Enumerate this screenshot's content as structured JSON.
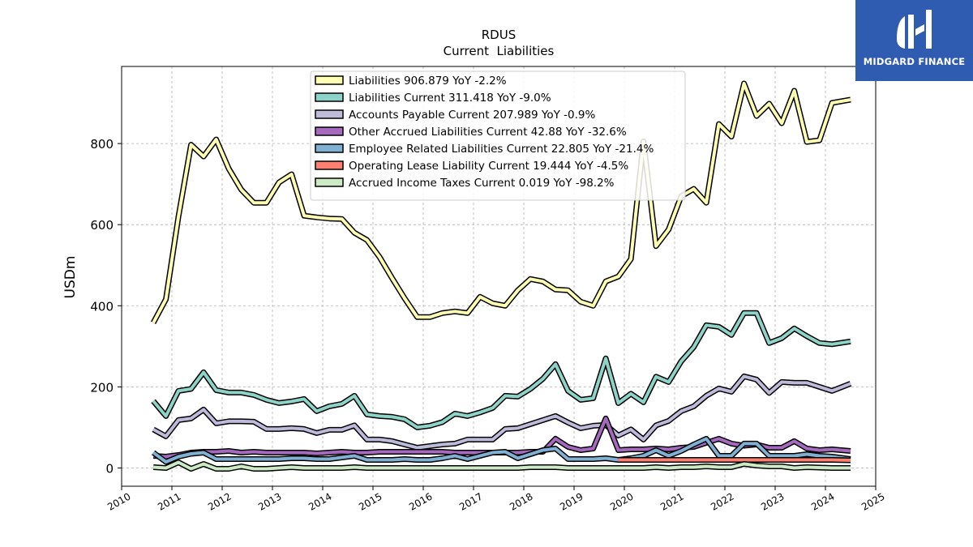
{
  "brand": {
    "name": "MIDGARD FINANCE",
    "bg_color": "#2f5bb0"
  },
  "chart_data": {
    "type": "line",
    "title": "RDUS",
    "subtitle": "Current  Liabilities",
    "xlabel": "",
    "ylabel": "USDm",
    "xlim": [
      2010.0,
      2025.0
    ],
    "ylim": [
      -45,
      990
    ],
    "xticks": [
      "2010",
      "2011",
      "2012",
      "2013",
      "2014",
      "2015",
      "2016",
      "2017",
      "2018",
      "2019",
      "2020",
      "2021",
      "2022",
      "2023",
      "2024",
      "2025"
    ],
    "yticks": [
      0,
      200,
      400,
      600,
      800
    ],
    "grid": true,
    "legend_position": "top-center",
    "series": [
      {
        "name": "Liabilities  906.879 YoY -2.2%",
        "color": "#ffffb3",
        "x": [
          2010.63,
          2010.88,
          2011.13,
          2011.38,
          2011.63,
          2011.88,
          2012.13,
          2012.38,
          2012.63,
          2012.88,
          2013.13,
          2013.38,
          2013.63,
          2013.88,
          2014.13,
          2014.38,
          2014.63,
          2014.88,
          2015.13,
          2015.38,
          2015.63,
          2015.88,
          2016.13,
          2016.38,
          2016.63,
          2016.88,
          2017.13,
          2017.38,
          2017.63,
          2017.88,
          2018.13,
          2018.38,
          2018.63,
          2018.88,
          2019.13,
          2019.38,
          2019.63,
          2019.88,
          2020.13,
          2020.38,
          2020.63,
          2020.88,
          2021.13,
          2021.38,
          2021.63,
          2021.88,
          2022.13,
          2022.38,
          2022.63,
          2022.88,
          2023.13,
          2023.38,
          2023.63,
          2023.88,
          2024.13,
          2024.5
        ],
        "y": [
          358,
          416,
          620,
          797,
          768,
          810,
          738,
          686,
          654,
          654,
          704,
          724,
          622,
          618,
          615,
          614,
          580,
          562,
          520,
          468,
          418,
          372,
          372,
          382,
          386,
          382,
          422,
          406,
          400,
          438,
          466,
          460,
          440,
          438,
          410,
          400,
          460,
          472,
          515,
          805,
          547,
          588,
          670,
          688,
          654,
          848,
          817,
          948,
          868,
          898,
          850,
          930,
          804,
          808,
          900,
          908
        ]
      },
      {
        "name": "Liabilities Current  311.418 YoY -9.0%",
        "color": "#8dd3c7",
        "x": [
          2010.63,
          2010.88,
          2011.13,
          2011.38,
          2011.63,
          2011.88,
          2012.13,
          2012.38,
          2012.63,
          2012.88,
          2013.13,
          2013.38,
          2013.63,
          2013.88,
          2014.13,
          2014.38,
          2014.63,
          2014.88,
          2015.13,
          2015.38,
          2015.63,
          2015.88,
          2016.13,
          2016.38,
          2016.63,
          2016.88,
          2017.13,
          2017.38,
          2017.63,
          2017.88,
          2018.13,
          2018.38,
          2018.63,
          2018.88,
          2019.13,
          2019.38,
          2019.63,
          2019.88,
          2020.13,
          2020.38,
          2020.63,
          2020.88,
          2021.13,
          2021.38,
          2021.63,
          2021.88,
          2022.13,
          2022.38,
          2022.63,
          2022.88,
          2023.13,
          2023.38,
          2023.63,
          2023.88,
          2024.13,
          2024.5
        ],
        "y": [
          165,
          128,
          190,
          195,
          236,
          192,
          186,
          186,
          180,
          168,
          160,
          164,
          170,
          140,
          152,
          158,
          178,
          132,
          128,
          126,
          120,
          100,
          104,
          113,
          134,
          128,
          137,
          148,
          178,
          176,
          195,
          220,
          256,
          190,
          168,
          172,
          270,
          160,
          183,
          162,
          225,
          212,
          263,
          298,
          352,
          348,
          328,
          382,
          382,
          308,
          320,
          344,
          325,
          308,
          305,
          312
        ]
      },
      {
        "name": "Accounts Payable Current  207.989 YoY -0.9%",
        "color": "#bebada",
        "x": [
          2010.63,
          2010.88,
          2011.13,
          2011.38,
          2011.63,
          2011.88,
          2012.13,
          2012.38,
          2012.63,
          2012.88,
          2013.13,
          2013.38,
          2013.63,
          2013.88,
          2014.13,
          2014.38,
          2014.63,
          2014.88,
          2015.13,
          2015.38,
          2015.63,
          2015.88,
          2016.13,
          2016.38,
          2016.63,
          2016.88,
          2017.13,
          2017.38,
          2017.63,
          2017.88,
          2018.13,
          2018.38,
          2018.63,
          2018.88,
          2019.13,
          2019.38,
          2019.63,
          2019.88,
          2020.13,
          2020.38,
          2020.63,
          2020.88,
          2021.13,
          2021.38,
          2021.63,
          2021.88,
          2022.13,
          2022.38,
          2022.63,
          2022.88,
          2023.13,
          2023.38,
          2023.63,
          2023.88,
          2024.13,
          2024.5
        ],
        "y": [
          95,
          78,
          118,
          122,
          144,
          110,
          115,
          115,
          114,
          96,
          96,
          98,
          96,
          86,
          94,
          94,
          105,
          70,
          70,
          66,
          58,
          50,
          54,
          58,
          60,
          70,
          70,
          70,
          96,
          98,
          108,
          118,
          128,
          112,
          98,
          104,
          106,
          80,
          95,
          70,
          105,
          116,
          140,
          152,
          178,
          196,
          188,
          226,
          218,
          185,
          212,
          210,
          210,
          200,
          190,
          208
        ]
      },
      {
        "name": "Other Accrued Liabilities Current  42.88 YoY -32.6%",
        "color": "#a569bd",
        "x": [
          2010.63,
          2010.88,
          2011.13,
          2011.38,
          2011.63,
          2011.88,
          2012.13,
          2012.38,
          2012.63,
          2012.88,
          2013.13,
          2013.38,
          2013.63,
          2013.88,
          2014.13,
          2014.38,
          2014.63,
          2014.88,
          2015.13,
          2015.38,
          2015.63,
          2015.88,
          2016.13,
          2016.38,
          2016.63,
          2016.88,
          2017.13,
          2017.38,
          2017.63,
          2017.88,
          2018.13,
          2018.38,
          2018.63,
          2018.88,
          2019.13,
          2019.38,
          2019.63,
          2019.88,
          2020.13,
          2020.38,
          2020.63,
          2020.88,
          2021.13,
          2021.38,
          2021.63,
          2021.88,
          2022.13,
          2022.38,
          2022.63,
          2022.88,
          2023.13,
          2023.38,
          2023.63,
          2023.88,
          2024.13,
          2024.5
        ],
        "y": [
          30,
          28,
          32,
          38,
          40,
          40,
          42,
          38,
          40,
          38,
          38,
          38,
          38,
          36,
          38,
          40,
          38,
          38,
          40,
          40,
          40,
          40,
          40,
          40,
          38,
          38,
          38,
          38,
          38,
          38,
          40,
          40,
          72,
          52,
          44,
          48,
          122,
          44,
          46,
          46,
          48,
          46,
          50,
          52,
          62,
          72,
          60,
          55,
          58,
          50,
          50,
          66,
          48,
          44,
          46,
          42
        ]
      },
      {
        "name": "Employee Related Liabilities Current  22.805 YoY -21.4%",
        "color": "#80b1d3",
        "x": [
          2010.63,
          2010.88,
          2011.13,
          2011.38,
          2011.63,
          2011.88,
          2012.13,
          2012.38,
          2012.63,
          2012.88,
          2013.13,
          2013.38,
          2013.63,
          2013.88,
          2014.13,
          2014.38,
          2014.63,
          2014.88,
          2015.13,
          2015.38,
          2015.63,
          2015.88,
          2016.13,
          2016.38,
          2016.63,
          2016.88,
          2017.13,
          2017.38,
          2017.63,
          2017.88,
          2018.13,
          2018.38,
          2018.63,
          2018.88,
          2019.13,
          2019.38,
          2019.63,
          2019.88,
          2020.13,
          2020.38,
          2020.63,
          2020.88,
          2021.13,
          2021.38,
          2021.63,
          2021.88,
          2022.13,
          2022.38,
          2022.63,
          2022.88,
          2023.13,
          2023.38,
          2023.63,
          2023.88,
          2024.13,
          2024.5
        ],
        "y": [
          38,
          15,
          28,
          35,
          38,
          22,
          22,
          22,
          22,
          22,
          22,
          24,
          24,
          22,
          22,
          26,
          30,
          20,
          20,
          20,
          22,
          20,
          20,
          24,
          30,
          22,
          30,
          38,
          40,
          24,
          34,
          44,
          48,
          22,
          22,
          22,
          24,
          20,
          24,
          30,
          44,
          30,
          42,
          58,
          72,
          30,
          30,
          60,
          60,
          30,
          30,
          30,
          34,
          30,
          28,
          22
        ]
      },
      {
        "name": "Operating Lease Liability Current  19.444 YoY -4.5%",
        "color": "#fb8072",
        "x": [
          2019.88,
          2020.13,
          2020.38,
          2020.63,
          2020.88,
          2021.13,
          2021.38,
          2021.63,
          2021.88,
          2022.13,
          2022.38,
          2022.63,
          2022.88,
          2023.13,
          2023.38,
          2023.63,
          2023.88,
          2024.13,
          2024.5
        ],
        "y": [
          20,
          20,
          20,
          20,
          20,
          20,
          20,
          20,
          20,
          20,
          20,
          20,
          20,
          20,
          20,
          20,
          20,
          20,
          19
        ]
      },
      {
        "name": "Accrued Income Taxes Current  0.019 YoY -98.2%",
        "color": "#ccebc5",
        "x": [
          2010.63,
          2010.88,
          2011.13,
          2011.38,
          2011.63,
          2011.88,
          2012.13,
          2012.38,
          2012.63,
          2012.88,
          2013.13,
          2013.38,
          2013.63,
          2013.88,
          2014.13,
          2014.38,
          2014.63,
          2014.88,
          2015.13,
          2015.38,
          2015.63,
          2015.88,
          2016.13,
          2016.38,
          2016.63,
          2016.88,
          2017.13,
          2017.38,
          2017.63,
          2017.88,
          2018.13,
          2018.38,
          2018.63,
          2018.88,
          2019.13,
          2019.38,
          2019.63,
          2019.88,
          2020.13,
          2020.38,
          2020.63,
          2020.88,
          2021.13,
          2021.38,
          2021.63,
          2021.88,
          2022.13,
          2022.38,
          2022.63,
          2022.88,
          2023.13,
          2023.38,
          2023.63,
          2023.88,
          2024.13,
          2024.5
        ],
        "y": [
          2,
          0,
          14,
          -2,
          10,
          -2,
          -2,
          4,
          -2,
          -2,
          0,
          2,
          0,
          0,
          0,
          0,
          2,
          0,
          0,
          0,
          0,
          0,
          0,
          0,
          0,
          0,
          0,
          0,
          0,
          0,
          2,
          2,
          2,
          0,
          0,
          0,
          0,
          0,
          0,
          0,
          2,
          0,
          2,
          2,
          4,
          2,
          2,
          10,
          6,
          4,
          4,
          0,
          2,
          1,
          0,
          0
        ]
      }
    ]
  }
}
